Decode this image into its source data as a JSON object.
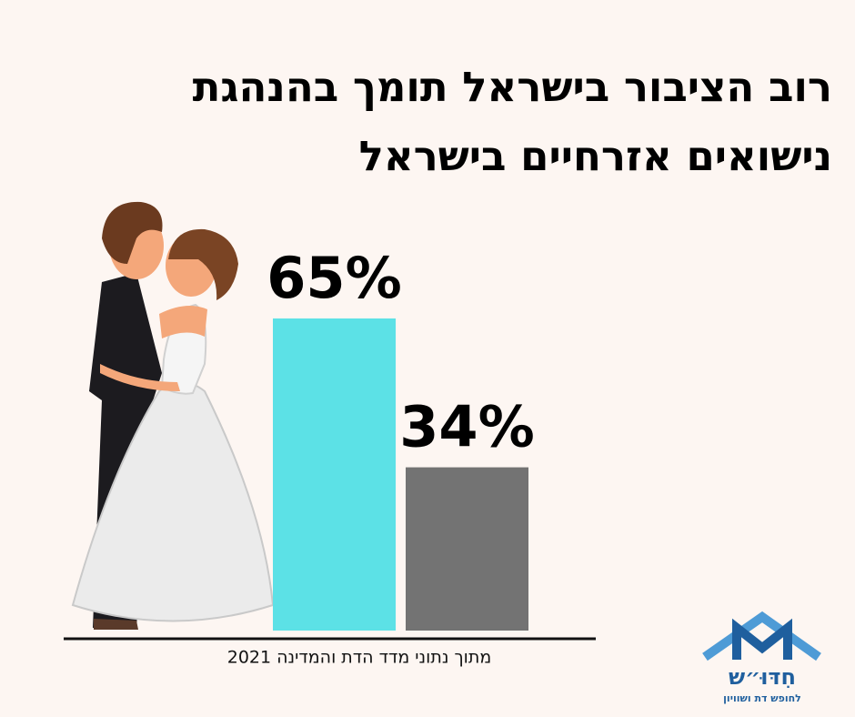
{
  "chart_data": {
    "type": "bar",
    "title": "רוב הציבור בישראל תומך בהנהגת נישואים אזרחיים בישראל",
    "categories": [
      null,
      null
    ],
    "values": [
      65,
      34
    ],
    "value_labels": [
      "65%",
      "34%"
    ],
    "colors": [
      "#5ce1e6",
      "#737373"
    ],
    "source": "מתוך נתוני מדד הדת והמדינה 2021"
  },
  "logo": {
    "name": "חִדּוּ״ש",
    "tagline": "לחופש דת ושוויון"
  }
}
